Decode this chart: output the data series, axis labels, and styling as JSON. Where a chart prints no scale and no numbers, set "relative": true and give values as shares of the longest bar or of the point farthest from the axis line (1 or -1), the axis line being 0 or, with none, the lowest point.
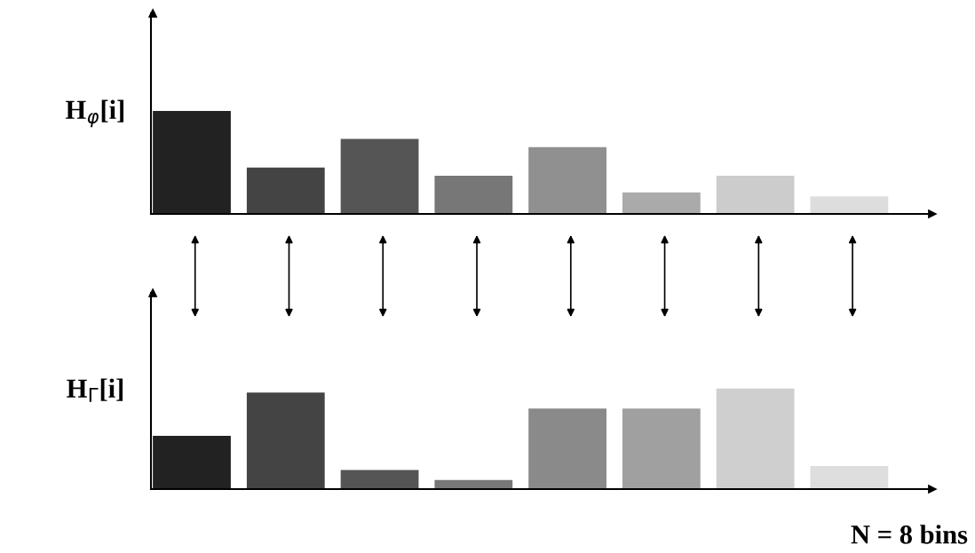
{
  "chart_data": [
    {
      "type": "bar",
      "relative": true,
      "ylabel": "H$_{φ}$[i]",
      "categories": [
        null,
        null,
        null,
        null,
        null,
        null,
        null,
        null
      ],
      "values": [
        1,
        0.45,
        0.73,
        0.37,
        0.65,
        0.21,
        0.37,
        0.17
      ],
      "colors": [
        "#222222",
        "#444444",
        "#555555",
        "#777777",
        "#909090",
        "#aaaaaa",
        "#cccccc",
        "#dddddd"
      ]
    },
    {
      "type": "bar",
      "relative": true,
      "ylabel": "H$_{Γ}$[i]",
      "categories": [
        null,
        null,
        null,
        null,
        null,
        null,
        null,
        null
      ],
      "values": [
        0.53,
        0.96,
        0.19,
        0.09,
        0.8,
        0.8,
        1,
        0.23
      ],
      "colors": [
        "#222222",
        "#444444",
        "#555555",
        "#777777",
        "#8a8a8a",
        "#a0a0a0",
        "#cfcfcf",
        "#dedede"
      ],
      "annotations": [
        "N = 8 bins"
      ]
    }
  ]
}
